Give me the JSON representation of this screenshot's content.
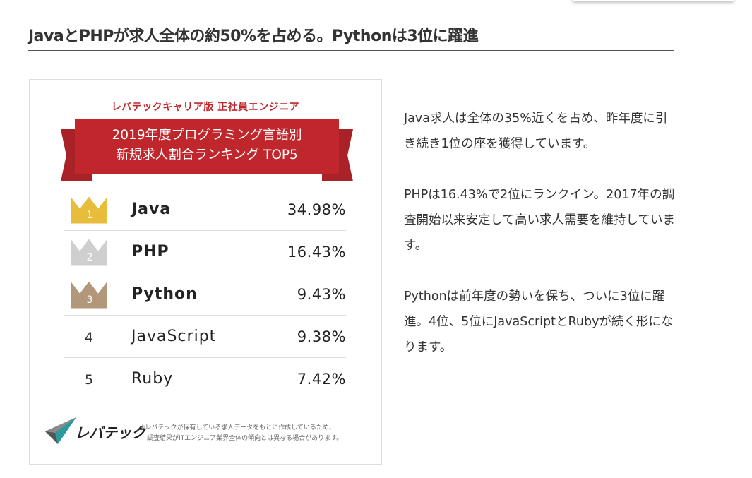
{
  "heading": "JavaとPHPが求人全体の約50%を占める。Pythonは3位に躍進",
  "card": {
    "subtitle": "レバテックキャリア版 正社員エンジニア",
    "banner_line1": "2019年度プログラミング言語別",
    "banner_line2": "新規求人割合ランキング TOP5",
    "rows": [
      {
        "rank": "1",
        "name": "Java",
        "percent": "34.98%",
        "crown": "gold",
        "color": "#e8bd3c"
      },
      {
        "rank": "2",
        "name": "PHP",
        "percent": "16.43%",
        "crown": "silver",
        "color": "#cfcfcf"
      },
      {
        "rank": "3",
        "name": "Python",
        "percent": "9.43%",
        "crown": "bronze",
        "color": "#b3977a"
      },
      {
        "rank": "4",
        "name": "JavaScript",
        "percent": "9.38%"
      },
      {
        "rank": "5",
        "name": "Ruby",
        "percent": "7.42%"
      }
    ],
    "logo_text": "レバテック",
    "note_line1": "※レバテックが保有している求人データをもとに作成しているため、",
    "note_line2": "調査結果がITエンジニア業界全体の傾向とは異なる場合があります。"
  },
  "paragraphs": [
    "Java求人は全体の35%近くを占め、昨年度に引き続き1位の座を獲得しています。",
    "PHPは16.43%で2位にランクイン。2017年の調査開始以来安定して高い求人需要を維持しています。",
    "Pythonは前年度の勢いを保ち、ついに3位に躍進。4位、5位にJavaScriptとRubyが続く形になります。"
  ],
  "colors": {
    "accent": "#c0272d"
  }
}
